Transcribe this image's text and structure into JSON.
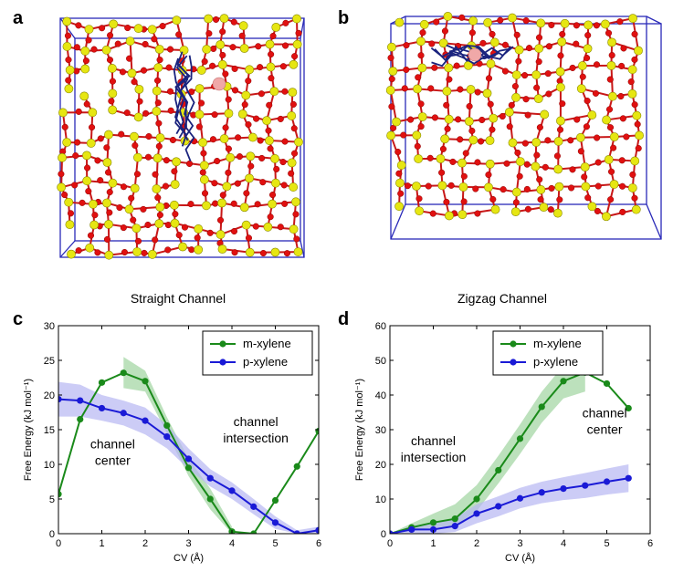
{
  "panels": {
    "a": {
      "label": "a"
    },
    "b": {
      "label": "b"
    },
    "c": {
      "label": "c"
    },
    "d": {
      "label": "d"
    }
  },
  "colors": {
    "m_xylene": "#1a8a1a",
    "p_xylene": "#1a1ad6",
    "m_band": "#9fd49f",
    "p_band": "#b7b7f2",
    "oxygen": "#e01010",
    "silicon": "#e6e612",
    "box": "#2a2ab8",
    "molecule": "#1a237e",
    "cation": "#f0a8a8"
  },
  "chart_data": [
    {
      "type": "line",
      "panel": "c",
      "title": "Straight Channel",
      "xlabel": "CV (Å)",
      "ylabel": "Free Energy (kJ mol⁻¹)",
      "xlim": [
        0,
        6
      ],
      "ylim": [
        0,
        30
      ],
      "xticks": [
        "0",
        "1",
        "2",
        "3",
        "4",
        "5",
        "6"
      ],
      "yticks": [
        "0",
        "5",
        "10",
        "15",
        "20",
        "25",
        "30"
      ],
      "legend": "top-right",
      "series": [
        {
          "name": "m-xylene",
          "x": [
            0,
            0.5,
            1,
            1.5,
            2,
            2.5,
            3,
            3.5,
            4,
            4.5,
            5,
            5.5,
            6
          ],
          "y": [
            5.7,
            16.5,
            21.8,
            23.2,
            22.0,
            15.6,
            9.5,
            5.0,
            0.3,
            0.0,
            4.8,
            9.7,
            14.8
          ],
          "band": {
            "x": [
              1.5,
              2,
              2.5,
              3,
              3.5,
              4
            ],
            "lower": [
              21.0,
              20.5,
              14.5,
              8.3,
              3.5,
              0.0
            ],
            "upper": [
              25.5,
              23.5,
              16.8,
              10.8,
              6.5,
              1.0
            ]
          }
        },
        {
          "name": "p-xylene",
          "x": [
            0,
            0.5,
            1,
            1.5,
            2,
            2.5,
            3,
            3.5,
            4,
            4.5,
            5,
            5.5,
            6
          ],
          "y": [
            19.4,
            19.2,
            18.1,
            17.4,
            16.3,
            14.0,
            10.8,
            8.0,
            6.2,
            3.9,
            1.6,
            0.0,
            0.5
          ],
          "band": {
            "x": [
              0,
              0.5,
              1,
              1.5,
              2,
              2.5,
              3,
              3.5,
              4,
              4.5,
              5,
              5.5,
              6
            ],
            "lower": [
              16.9,
              16.9,
              16.3,
              15.6,
              14.3,
              12.3,
              9.3,
              6.8,
              5.0,
              2.8,
              0.7,
              0.0,
              0.0
            ],
            "upper": [
              21.9,
              21.5,
              20.0,
              19.2,
              18.2,
              15.7,
              12.3,
              9.3,
              7.4,
              5.0,
              2.5,
              0.5,
              1.0
            ]
          }
        }
      ],
      "annotations": [
        {
          "text": [
            "channel",
            "center"
          ],
          "x": 1.25,
          "y": 12.3
        },
        {
          "text": [
            "channel",
            "intersection"
          ],
          "x": 4.55,
          "y": 15.5
        }
      ]
    },
    {
      "type": "line",
      "panel": "d",
      "title": "Zigzag Channel",
      "xlabel": "CV (Å)",
      "ylabel": "Free Energy (kJ mol⁻¹)",
      "xlim": [
        0,
        6
      ],
      "ylim": [
        0,
        60
      ],
      "xticks": [
        "0",
        "1",
        "2",
        "3",
        "4",
        "5",
        "6"
      ],
      "yticks": [
        "0",
        "10",
        "20",
        "30",
        "40",
        "50",
        "60"
      ],
      "legend": "top-center",
      "series": [
        {
          "name": "m-xylene",
          "x": [
            0,
            0.5,
            1,
            1.5,
            2,
            2.5,
            3,
            3.5,
            4,
            4.5,
            5,
            5.5
          ],
          "y": [
            0.0,
            1.8,
            3.2,
            4.3,
            10.0,
            18.3,
            27.4,
            36.6,
            44.0,
            46.5,
            43.3,
            36.2
          ],
          "band": {
            "x": [
              0,
              0.5,
              1,
              1.5,
              2,
              2.5,
              3,
              3.5,
              4,
              4.5
            ],
            "lower": [
              0.0,
              1.0,
              1.8,
              2.3,
              6.5,
              14.5,
              23.0,
              32.0,
              39.0,
              41.0
            ],
            "upper": [
              0.0,
              3.0,
              5.8,
              8.5,
              14.0,
              22.5,
              31.5,
              41.0,
              48.5,
              52.0
            ]
          }
        },
        {
          "name": "p-xylene",
          "x": [
            0,
            0.5,
            1,
            1.5,
            2,
            2.5,
            3,
            3.5,
            4,
            4.5,
            5,
            5.5
          ],
          "y": [
            0.0,
            1.2,
            1.2,
            2.2,
            5.8,
            7.9,
            10.2,
            11.9,
            13.0,
            13.9,
            15.0,
            16.0
          ],
          "band": {
            "x": [
              0,
              0.5,
              1,
              1.5,
              2,
              2.5,
              3,
              3.5,
              4,
              4.5,
              5,
              5.5
            ],
            "lower": [
              0.0,
              0.2,
              0.0,
              0.5,
              3.0,
              5.0,
              7.3,
              8.8,
              9.7,
              10.3,
              11.3,
              12.0
            ],
            "upper": [
              0.0,
              2.3,
              3.0,
              4.5,
              8.5,
              10.8,
              13.2,
              15.0,
              16.3,
              17.5,
              18.8,
              20.0
            ]
          }
        }
      ],
      "annotations": [
        {
          "text": [
            "channel",
            "intersection"
          ],
          "x": 1.0,
          "y": 25.5
        },
        {
          "text": [
            "channel",
            "center"
          ],
          "x": 4.95,
          "y": 33.5
        }
      ]
    }
  ]
}
